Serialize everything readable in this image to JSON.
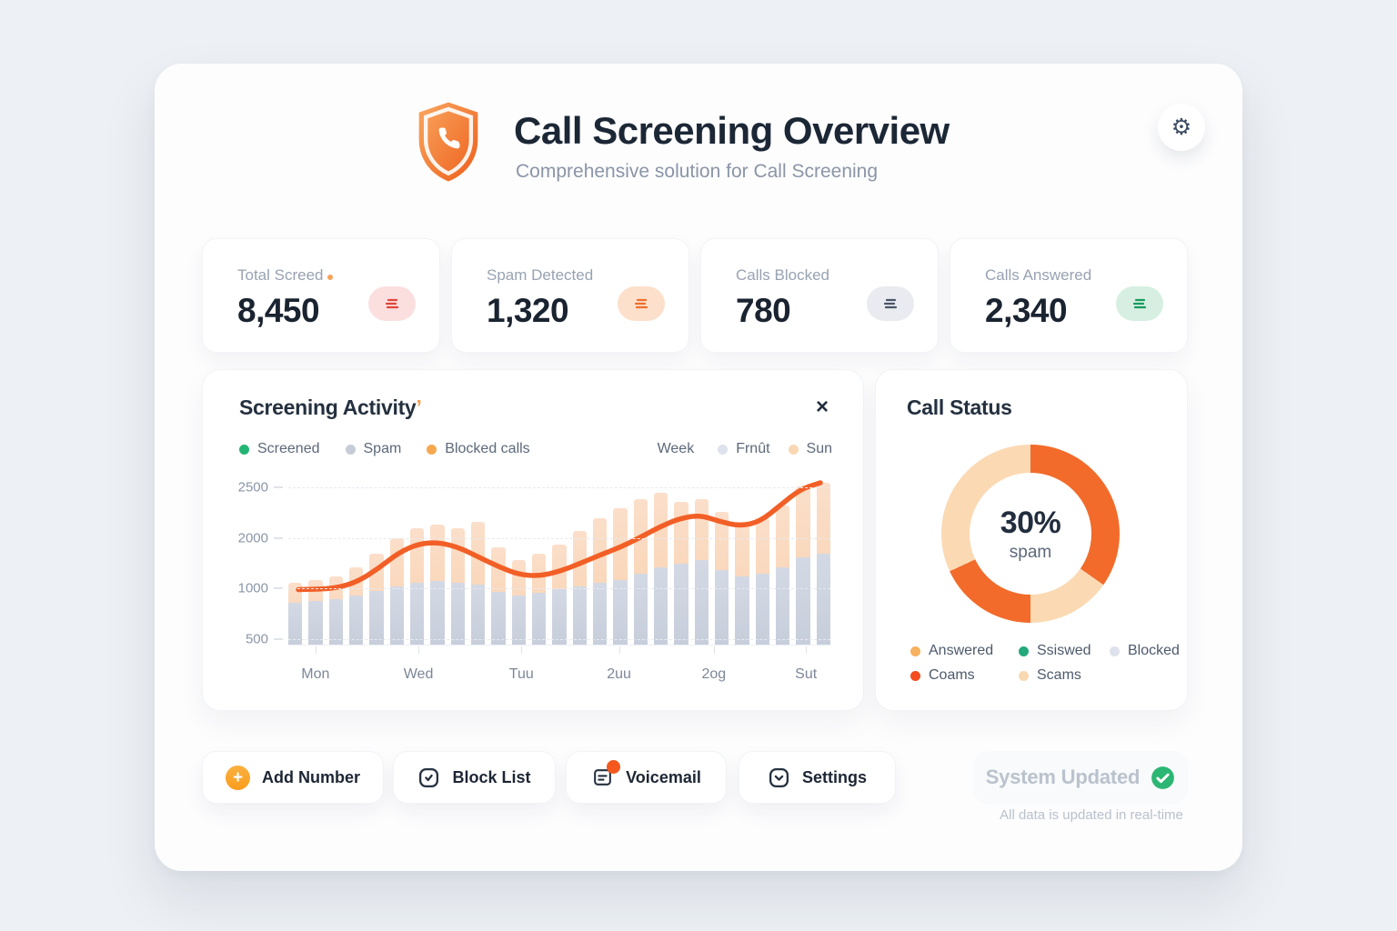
{
  "header": {
    "title": "Call Screening Overview",
    "subtitle": "Comprehensive solution for Call Screening",
    "gear_glyph": "⚙"
  },
  "stats": [
    {
      "label": "Total Screed",
      "value": "8,450",
      "pill_bg": "#fbdfdf",
      "pill_fg": "#e0453a"
    },
    {
      "label": "Spam Detected",
      "value": "1,320",
      "pill_bg": "#fce0cb",
      "pill_fg": "#ee6f2d"
    },
    {
      "label": "Calls Blocked",
      "value": "780",
      "pill_bg": "#e9ebf0",
      "pill_fg": "#4a5568"
    },
    {
      "label": "Calls Answered",
      "value": "2,340",
      "pill_bg": "#d6efe2",
      "pill_fg": "#189a5e"
    }
  ],
  "activity": {
    "title": "Screening Activity",
    "close_glyph": "×",
    "legend": [
      {
        "label": "Screened",
        "color": "#22b573"
      },
      {
        "label": "Spam",
        "color": "#c6ccd8"
      },
      {
        "label": "Blocked calls",
        "color": "#f5a84f"
      }
    ],
    "range": {
      "week_label": "Week",
      "items": [
        {
          "label": "Frnût",
          "color": "#dde2ec"
        },
        {
          "label": "Sun",
          "color": "#f8d8b2"
        }
      ]
    },
    "chart_data": {
      "type": "bar",
      "title": "Screening Activity",
      "x_ticks": [
        "Mon",
        "Wed",
        "Tuu",
        "2uu",
        "2og",
        "Sut"
      ],
      "x_tick_pos": [
        0.05,
        0.24,
        0.43,
        0.61,
        0.785,
        0.955
      ],
      "y_ticks": [
        "2500",
        "2000",
        "1000",
        "500"
      ],
      "y_tick_pos": [
        5,
        61,
        116,
        172
      ],
      "ylim": [
        0,
        2500
      ],
      "grid": true,
      "series": [
        {
          "name": "Blocked calls",
          "kind": "bar-total",
          "color": "#f8d0ac",
          "values": [
            950,
            1000,
            1050,
            1200,
            1400,
            1650,
            1800,
            1850,
            1800,
            1900,
            1500,
            1300,
            1400,
            1550,
            1750,
            1950,
            2100,
            2250,
            2350,
            2200,
            2250,
            2050,
            1900,
            1950,
            2150,
            2450,
            2500
          ]
        },
        {
          "name": "Spam",
          "kind": "bar-base",
          "color": "#c9d0dc",
          "values": [
            650,
            680,
            700,
            760,
            830,
            900,
            950,
            980,
            950,
            930,
            820,
            760,
            800,
            850,
            900,
            950,
            1000,
            1100,
            1200,
            1250,
            1300,
            1150,
            1050,
            1100,
            1200,
            1350,
            1400
          ]
        },
        {
          "name": "Screened",
          "kind": "line",
          "color": "#f25f26",
          "values": [
            850,
            855,
            880,
            980,
            1180,
            1420,
            1560,
            1580,
            1500,
            1350,
            1200,
            1080,
            1060,
            1130,
            1250,
            1380,
            1500,
            1650,
            1820,
            1950,
            2000,
            1900,
            1830,
            1900,
            2150,
            2400,
            2500
          ]
        }
      ]
    }
  },
  "status": {
    "title": "Call Status",
    "chart_data": {
      "type": "pie",
      "center_value": "30%",
      "center_label": "spam",
      "segments": [
        {
          "color": "#f26b2a",
          "start": 0,
          "end": 125
        },
        {
          "color": "#fbd9b3",
          "start": 125,
          "end": 180
        },
        {
          "color": "#f26b2a",
          "start": 180,
          "end": 245
        },
        {
          "color": "#fbd9b3",
          "start": 245,
          "end": 360
        }
      ]
    },
    "legend": [
      {
        "label": "Answered",
        "color": "#f6b05e"
      },
      {
        "label": "Ssiswed",
        "color": "#23a97c"
      },
      {
        "label": "Blocked",
        "color": "#dde2ec"
      },
      {
        "label": "Coams",
        "color": "#f44d1f"
      },
      {
        "label": "Scams",
        "color": "#f8d8b0"
      }
    ]
  },
  "actions": [
    {
      "label": "Add Number"
    },
    {
      "label": "Block List"
    },
    {
      "label": "Voicemail"
    },
    {
      "label": "Settings"
    }
  ],
  "footer": {
    "status": "System Updated",
    "note": "All data is updated in real-time"
  }
}
